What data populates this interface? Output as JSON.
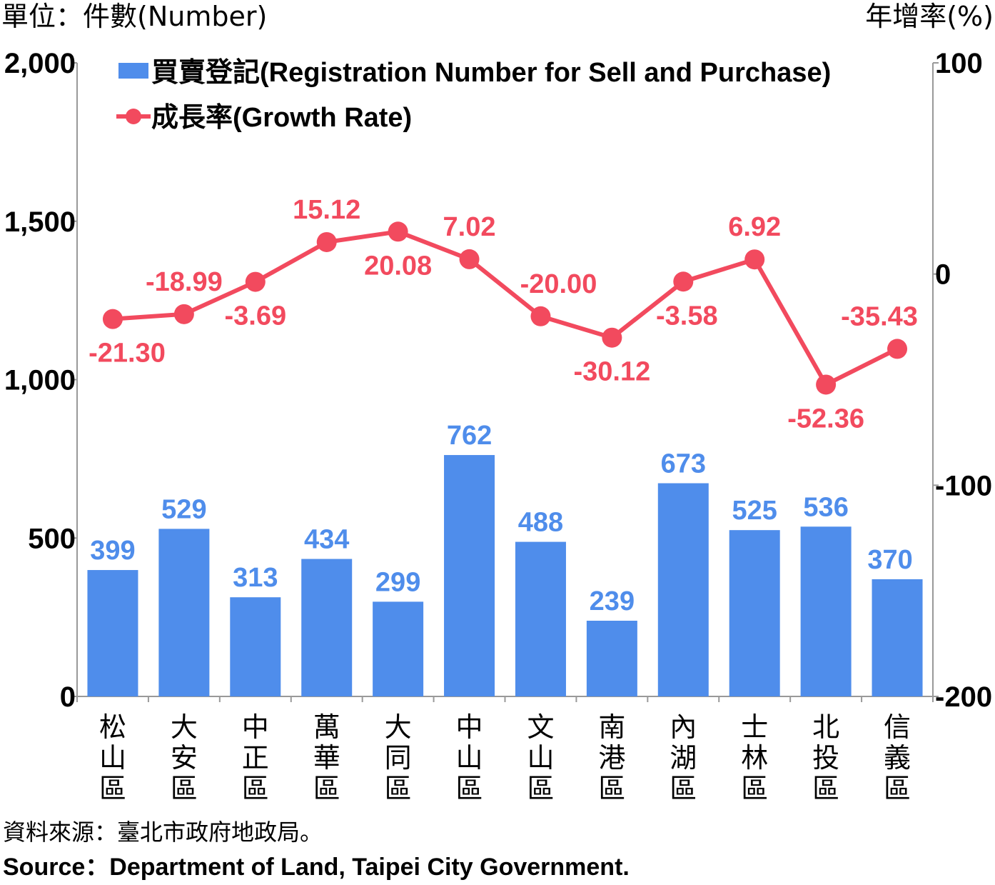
{
  "units": {
    "left": "單位：件數(Number)",
    "right": "年增率(%)"
  },
  "legend": {
    "bars": "買賣登記(Registration Number for Sell and Purchase)",
    "line": "成長率(Growth Rate)"
  },
  "source": {
    "zh": "資料來源：臺北市政府地政局。",
    "en": "Source：Department of Land, Taipei City Government."
  },
  "chart_data": {
    "type": "bar+line",
    "categories": [
      "松山區",
      "大安區",
      "中正區",
      "萬華區",
      "大同區",
      "中山區",
      "文山區",
      "南港區",
      "內湖區",
      "士林區",
      "北投區",
      "信義區"
    ],
    "series": [
      {
        "name": "買賣登記(Registration Number for Sell and Purchase)",
        "type": "bar",
        "axis": "left",
        "values": [
          399,
          529,
          313,
          434,
          299,
          762,
          488,
          239,
          673,
          525,
          536,
          370
        ]
      },
      {
        "name": "成長率(Growth Rate)",
        "type": "line",
        "axis": "right",
        "values": [
          -21.3,
          -18.99,
          -3.69,
          15.12,
          20.08,
          7.02,
          -20.0,
          -30.12,
          -3.58,
          6.92,
          -52.36,
          -35.43
        ],
        "labels": [
          "-21.30",
          "-18.99",
          "-3.69",
          "15.12",
          "20.08",
          "7.02",
          "-20.00",
          "-30.12",
          "-3.58",
          "6.92",
          "-52.36",
          "-35.43"
        ]
      }
    ],
    "y_left": {
      "min": 0,
      "max": 2000,
      "ticks": [
        0,
        500,
        1000,
        1500,
        2000
      ],
      "tick_labels": [
        "0",
        "500",
        "1,000",
        "1,500",
        "2,000"
      ]
    },
    "y_right": {
      "min": -200,
      "max": 100,
      "ticks": [
        -200,
        -100,
        0,
        100
      ],
      "tick_labels": [
        "-200",
        "-100",
        "0",
        "100"
      ]
    },
    "grid": false,
    "legend_position": "top",
    "colors": {
      "bar": "#4F8DEB",
      "line": "#F24A5E",
      "bar_label": "#4F8DEB",
      "line_label": "#F24A5E"
    }
  }
}
